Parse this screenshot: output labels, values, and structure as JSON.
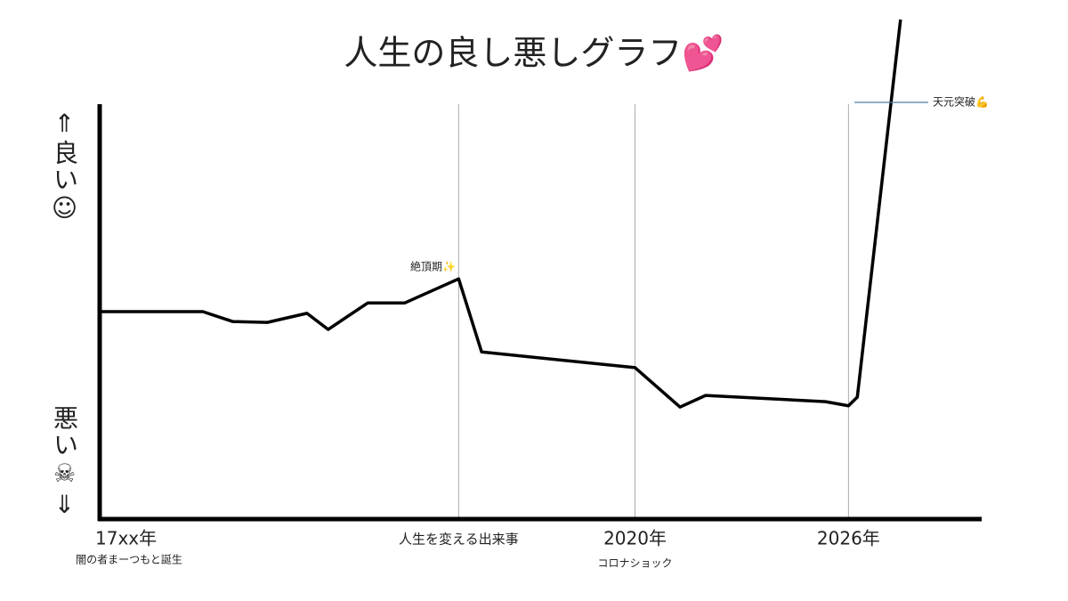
{
  "chart_data": {
    "type": "line",
    "title": "人生の良し悪しグラフ💕",
    "y_label_good": "⇑良い☺",
    "y_label_bad": "悪い☠⇓",
    "x": [
      0,
      11.7,
      15.1,
      19.0,
      23.5,
      25.9,
      30.4,
      34.6,
      40.7,
      43.3,
      60.7,
      65.8,
      68.7,
      82.3,
      84.9,
      85.9,
      90.8
    ],
    "values": [
      50.0,
      50.0,
      47.6,
      47.4,
      49.6,
      45.7,
      52.1,
      52.1,
      57.9,
      40.3,
      36.5,
      27.0,
      29.8,
      28.3,
      27.3,
      29.4,
      120.4
    ],
    "color": "#000000",
    "xlim": [
      0,
      100
    ],
    "ylim": [
      0,
      100
    ],
    "xticks": [
      {
        "value": 0,
        "label": "17xx年"
      },
      {
        "value": 40.7,
        "label": "人生を変える出来事"
      },
      {
        "value": 60.7,
        "label": "2020年"
      },
      {
        "value": 84.9,
        "label": "2026年"
      }
    ],
    "xtick_notes": [
      "闇の者まーつもと誕生",
      "コロナショック"
    ],
    "annotations": [
      "絶頂期✨",
      "天元突破💪"
    ],
    "grid": true
  }
}
